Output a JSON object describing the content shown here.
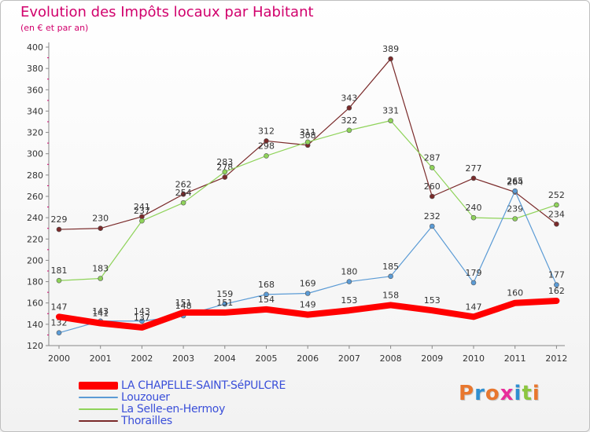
{
  "title": "Evolution des Impôts locaux par Habitant",
  "subtitle": "(en € et par an)",
  "logo": {
    "text": "Proxiti",
    "colors": [
      "#e8772e",
      "#2f8fd1",
      "#e8772e",
      "#e82e9a",
      "#2f8fd1",
      "#8cc63f",
      "#e8772e"
    ]
  },
  "chart_data": {
    "type": "line",
    "title": "Evolution des Impôts locaux par Habitant",
    "subtitle": "(en € et par an)",
    "x": [
      "2000",
      "2001",
      "2002",
      "2003",
      "2004",
      "2005",
      "2006",
      "2007",
      "2008",
      "2009",
      "2010",
      "2011",
      "2012"
    ],
    "ylim": [
      120,
      400
    ],
    "yticks": [
      120,
      140,
      160,
      180,
      200,
      220,
      240,
      260,
      280,
      300,
      320,
      340,
      360,
      380,
      400
    ],
    "grid": false,
    "legend_position": "bottom-left",
    "series": [
      {
        "name": "LA CHAPELLE-SAINT-SéPULCRE",
        "color": "#ff0000",
        "values": [
          147,
          141,
          137,
          151,
          151,
          154,
          149,
          153,
          158,
          153,
          147,
          160,
          162
        ]
      },
      {
        "name": "Louzouer",
        "color": "#5b9bd5",
        "values": [
          132,
          143,
          143,
          148,
          159,
          168,
          169,
          180,
          185,
          232,
          179,
          265,
          177
        ]
      },
      {
        "name": "La Selle-en-Hermoy",
        "color": "#8fd35a",
        "values": [
          181,
          183,
          237,
          254,
          283,
          298,
          311,
          322,
          331,
          287,
          240,
          239,
          252
        ]
      },
      {
        "name": "Thorailles",
        "color": "#7a2a2a",
        "values": [
          229,
          230,
          241,
          262,
          278,
          312,
          308,
          343,
          389,
          260,
          277,
          264,
          234
        ]
      }
    ]
  }
}
